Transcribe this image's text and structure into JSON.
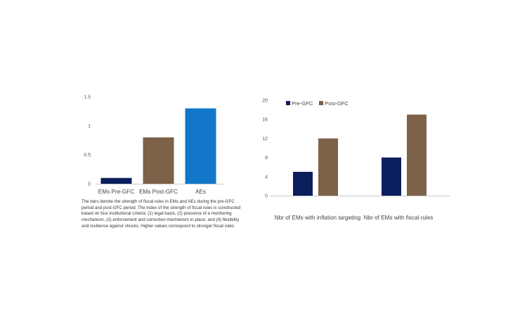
{
  "chart_data": [
    {
      "type": "bar",
      "categories": [
        "EMs Pre-GFC",
        "EMs Post-GFC",
        "AEs"
      ],
      "values": [
        0.1,
        0.8,
        1.3
      ],
      "colors": [
        "#0b1f5e",
        "#7d6148",
        "#1377c9"
      ],
      "yticks": [
        "0",
        "0.5",
        "1",
        "1.5"
      ],
      "ylim": [
        0,
        1.5
      ],
      "grid": false,
      "note": "The bars denote the strength of fiscal rules in EMs and AEs during the pre-GFC period and post-GFC period. The index of the strength of fiscal rules is constructed based on four institutional criteria: (1) legal basis, (2) presence of a monitoring mechanism, (3) enforcement and correction mechanism in place, and (4) flexibility and resilience against shocks. Higher values correspond to stronger fiscal rules."
    },
    {
      "type": "bar",
      "categories": [
        "Nbr of EMs with inflation targeting",
        "Nbr of EMs with fiscal rules"
      ],
      "series": [
        {
          "name": "Pre-GFC",
          "values": [
            5,
            8
          ],
          "color": "#0b1f5e"
        },
        {
          "name": "Post-GFC",
          "values": [
            12,
            17
          ],
          "color": "#7d6148"
        }
      ],
      "yticks": [
        "0",
        "4",
        "8",
        "12",
        "16",
        "20"
      ],
      "ylim": [
        0,
        20
      ],
      "grid": false,
      "legend": "top-left"
    }
  ]
}
